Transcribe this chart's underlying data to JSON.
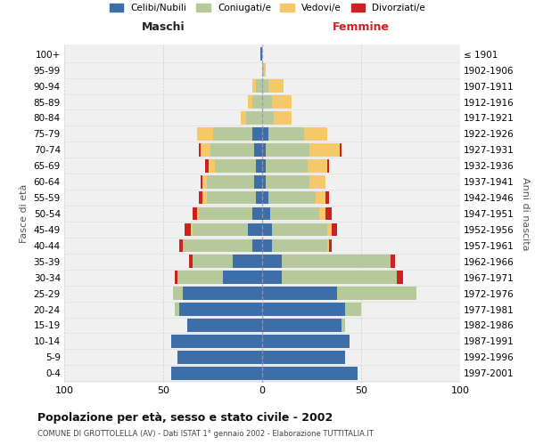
{
  "age_groups": [
    "0-4",
    "5-9",
    "10-14",
    "15-19",
    "20-24",
    "25-29",
    "30-34",
    "35-39",
    "40-44",
    "45-49",
    "50-54",
    "55-59",
    "60-64",
    "65-69",
    "70-74",
    "75-79",
    "80-84",
    "85-89",
    "90-94",
    "95-99",
    "100+"
  ],
  "birth_years": [
    "1997-2001",
    "1992-1996",
    "1987-1991",
    "1982-1986",
    "1977-1981",
    "1972-1976",
    "1967-1971",
    "1962-1966",
    "1957-1961",
    "1952-1956",
    "1947-1951",
    "1942-1946",
    "1937-1941",
    "1932-1936",
    "1927-1931",
    "1922-1926",
    "1917-1921",
    "1912-1916",
    "1907-1911",
    "1902-1906",
    "≤ 1901"
  ],
  "males": {
    "celibi": [
      46,
      43,
      46,
      38,
      42,
      40,
      20,
      15,
      5,
      7,
      5,
      3,
      4,
      3,
      4,
      5,
      0,
      0,
      0,
      0,
      1
    ],
    "coniugati": [
      0,
      0,
      0,
      0,
      2,
      5,
      23,
      20,
      35,
      28,
      27,
      25,
      24,
      21,
      22,
      20,
      8,
      5,
      3,
      0,
      0
    ],
    "vedovi": [
      0,
      0,
      0,
      0,
      0,
      0,
      0,
      0,
      0,
      1,
      1,
      2,
      2,
      3,
      5,
      8,
      3,
      2,
      2,
      0,
      0
    ],
    "divorziati": [
      0,
      0,
      0,
      0,
      0,
      0,
      1,
      2,
      2,
      3,
      2,
      2,
      1,
      2,
      1,
      0,
      0,
      0,
      0,
      0,
      0
    ]
  },
  "females": {
    "nubili": [
      48,
      42,
      44,
      40,
      42,
      38,
      10,
      10,
      5,
      5,
      4,
      3,
      2,
      2,
      2,
      3,
      0,
      0,
      0,
      0,
      0
    ],
    "coniugate": [
      0,
      0,
      0,
      2,
      8,
      40,
      58,
      55,
      28,
      28,
      25,
      24,
      22,
      21,
      22,
      18,
      6,
      5,
      3,
      1,
      0
    ],
    "vedove": [
      0,
      0,
      0,
      0,
      0,
      0,
      0,
      0,
      1,
      2,
      3,
      5,
      8,
      10,
      15,
      12,
      9,
      10,
      8,
      1,
      0
    ],
    "divorziate": [
      0,
      0,
      0,
      0,
      0,
      0,
      3,
      2,
      1,
      3,
      3,
      2,
      0,
      1,
      1,
      0,
      0,
      0,
      0,
      0,
      0
    ]
  },
  "colors": {
    "celibi": "#3d6ea8",
    "coniugati": "#b5c99a",
    "vedovi": "#f5c96a",
    "divorziati": "#cc2222"
  },
  "xlim": 100,
  "title": "Popolazione per età, sesso e stato civile - 2002",
  "subtitle": "COMUNE DI GROTTOLELLA (AV) - Dati ISTAT 1° gennaio 2002 - Elaborazione TUTTITALIA.IT",
  "ylabel_left": "Fasce di età",
  "ylabel_right": "Anni di nascita",
  "xlabel_left": "Maschi",
  "xlabel_right": "Femmine",
  "legend_labels": [
    "Celibi/Nubili",
    "Coniugati/e",
    "Vedovi/e",
    "Divorziati/e"
  ],
  "bg_color": "#f0f0f0",
  "grid_color": "#cccccc"
}
